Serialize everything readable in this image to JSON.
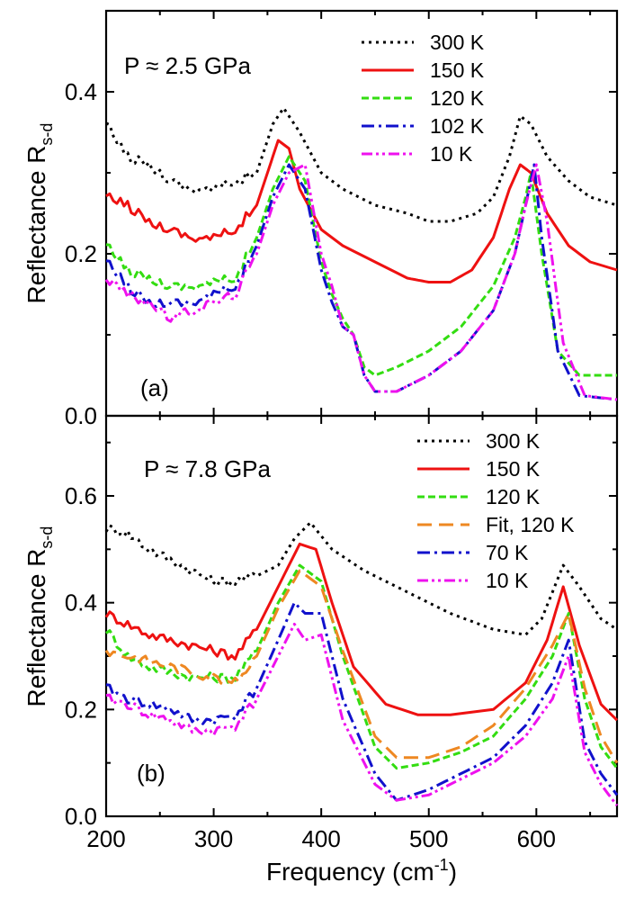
{
  "figure": {
    "x_axis_title": "Frequency (cm",
    "x_axis_unit_sup": "-1",
    "x_axis_title_end": ")"
  },
  "colors": {
    "300 K": "#000000",
    "150 K": "#ee1111",
    "120 K": "#33dd11",
    "Fit, 120 K": "#ee8822",
    "102 K": "#1111cc",
    "70 K": "#1111cc",
    "10 K": "#ee11ee"
  },
  "chart_data": [
    {
      "type": "line",
      "panel_label": "(a)",
      "annotation": "P ≈ 2.5 GPa",
      "ylabel": "Reflectance R",
      "ylabel_sub": "s-d",
      "xlabel": "Frequency (cm-1)",
      "xlim": [
        200,
        675
      ],
      "ylim": [
        0.0,
        0.5
      ],
      "xticks": [
        200,
        300,
        400,
        500,
        600
      ],
      "yticks": [
        0.0,
        0.2,
        0.4
      ],
      "ytick_labels": [
        "0.0",
        "0.2",
        "0.4"
      ],
      "legend_position": "top-right",
      "grid": false,
      "series": [
        {
          "name": "300 K",
          "style": "dotted",
          "x": [
            200,
            220,
            240,
            260,
            280,
            300,
            320,
            340,
            355,
            365,
            380,
            400,
            420,
            450,
            480,
            500,
            520,
            545,
            560,
            575,
            585,
            595,
            610,
            630,
            650,
            675
          ],
          "y": [
            0.36,
            0.32,
            0.31,
            0.29,
            0.28,
            0.28,
            0.29,
            0.3,
            0.36,
            0.38,
            0.35,
            0.3,
            0.28,
            0.26,
            0.25,
            0.24,
            0.24,
            0.25,
            0.27,
            0.32,
            0.37,
            0.36,
            0.32,
            0.29,
            0.27,
            0.26
          ]
        },
        {
          "name": "150 K",
          "style": "solid",
          "x": [
            200,
            220,
            240,
            260,
            280,
            300,
            320,
            340,
            350,
            360,
            370,
            380,
            400,
            420,
            450,
            480,
            500,
            520,
            540,
            560,
            575,
            585,
            595,
            610,
            630,
            650,
            675
          ],
          "y": [
            0.27,
            0.26,
            0.24,
            0.23,
            0.22,
            0.22,
            0.23,
            0.26,
            0.3,
            0.34,
            0.33,
            0.28,
            0.23,
            0.21,
            0.19,
            0.17,
            0.165,
            0.165,
            0.18,
            0.22,
            0.28,
            0.31,
            0.3,
            0.25,
            0.21,
            0.19,
            0.18
          ]
        },
        {
          "name": "120 K",
          "style": "dashed",
          "x": [
            200,
            220,
            240,
            260,
            280,
            300,
            320,
            340,
            355,
            370,
            385,
            400,
            410,
            420,
            430,
            440,
            450,
            470,
            500,
            530,
            560,
            580,
            590,
            595,
            605,
            620,
            640,
            675
          ],
          "y": [
            0.21,
            0.18,
            0.17,
            0.16,
            0.16,
            0.165,
            0.17,
            0.22,
            0.28,
            0.32,
            0.29,
            0.19,
            0.15,
            0.12,
            0.1,
            0.06,
            0.05,
            0.06,
            0.08,
            0.11,
            0.16,
            0.22,
            0.27,
            0.3,
            0.2,
            0.08,
            0.05,
            0.05
          ]
        },
        {
          "name": "102 K",
          "style": "dashdot",
          "x": [
            200,
            220,
            240,
            260,
            280,
            300,
            320,
            340,
            355,
            370,
            385,
            400,
            410,
            420,
            430,
            440,
            450,
            470,
            500,
            530,
            560,
            580,
            590,
            598,
            605,
            620,
            640,
            675
          ],
          "y": [
            0.19,
            0.16,
            0.14,
            0.14,
            0.14,
            0.15,
            0.16,
            0.21,
            0.27,
            0.31,
            0.28,
            0.18,
            0.14,
            0.11,
            0.1,
            0.05,
            0.03,
            0.03,
            0.05,
            0.08,
            0.13,
            0.2,
            0.26,
            0.31,
            0.22,
            0.08,
            0.025,
            0.02
          ]
        },
        {
          "name": "10 K",
          "style": "dashdotdot",
          "x": [
            200,
            220,
            240,
            260,
            280,
            300,
            320,
            340,
            355,
            370,
            385,
            400,
            410,
            420,
            430,
            440,
            450,
            470,
            500,
            530,
            560,
            580,
            590,
            600,
            610,
            625,
            645,
            675
          ],
          "y": [
            0.17,
            0.15,
            0.14,
            0.12,
            0.13,
            0.14,
            0.15,
            0.2,
            0.26,
            0.3,
            0.31,
            0.2,
            0.16,
            0.11,
            0.1,
            0.05,
            0.03,
            0.03,
            0.05,
            0.08,
            0.13,
            0.2,
            0.26,
            0.31,
            0.24,
            0.09,
            0.025,
            0.02
          ]
        }
      ]
    },
    {
      "type": "line",
      "panel_label": "(b)",
      "annotation": "P ≈ 7.8 GPa",
      "ylabel": "Reflectance R",
      "ylabel_sub": "s-d",
      "xlabel": "Frequency (cm-1)",
      "xlim": [
        200,
        675
      ],
      "ylim": [
        0.0,
        0.75
      ],
      "xticks": [
        200,
        300,
        400,
        500,
        600
      ],
      "yticks": [
        0.0,
        0.2,
        0.4,
        0.6
      ],
      "ytick_labels": [
        "0.0",
        "0.2",
        "0.4",
        "0.6"
      ],
      "legend_position": "top-right",
      "grid": false,
      "series": [
        {
          "name": "300 K",
          "style": "dotted",
          "x": [
            200,
            220,
            240,
            260,
            280,
            300,
            320,
            340,
            360,
            375,
            390,
            410,
            440,
            480,
            520,
            560,
            590,
            605,
            615,
            625,
            640,
            660,
            675
          ],
          "y": [
            0.54,
            0.53,
            0.5,
            0.48,
            0.46,
            0.44,
            0.44,
            0.45,
            0.47,
            0.52,
            0.55,
            0.5,
            0.46,
            0.42,
            0.38,
            0.35,
            0.34,
            0.37,
            0.42,
            0.47,
            0.43,
            0.37,
            0.35
          ]
        },
        {
          "name": "150 K",
          "style": "solid",
          "x": [
            200,
            220,
            240,
            260,
            280,
            300,
            320,
            340,
            360,
            380,
            395,
            410,
            430,
            460,
            490,
            520,
            560,
            590,
            610,
            625,
            640,
            660,
            675
          ],
          "y": [
            0.38,
            0.36,
            0.34,
            0.33,
            0.32,
            0.31,
            0.3,
            0.35,
            0.43,
            0.51,
            0.5,
            0.4,
            0.28,
            0.21,
            0.19,
            0.19,
            0.2,
            0.25,
            0.33,
            0.43,
            0.32,
            0.21,
            0.18
          ]
        },
        {
          "name": "120 K",
          "style": "dashed",
          "x": [
            200,
            220,
            240,
            260,
            280,
            300,
            320,
            340,
            360,
            380,
            400,
            420,
            450,
            470,
            500,
            530,
            560,
            590,
            615,
            630,
            645,
            660,
            675
          ],
          "y": [
            0.35,
            0.3,
            0.28,
            0.27,
            0.26,
            0.26,
            0.26,
            0.31,
            0.4,
            0.47,
            0.44,
            0.3,
            0.13,
            0.09,
            0.1,
            0.12,
            0.15,
            0.22,
            0.3,
            0.38,
            0.22,
            0.13,
            0.09
          ]
        },
        {
          "name": "Fit, 120 K",
          "style": "longdash",
          "x": [
            200,
            220,
            240,
            260,
            280,
            300,
            320,
            340,
            360,
            380,
            400,
            420,
            450,
            470,
            500,
            530,
            560,
            590,
            615,
            630,
            645,
            660,
            675
          ],
          "y": [
            0.31,
            0.3,
            0.29,
            0.28,
            0.27,
            0.26,
            0.25,
            0.3,
            0.39,
            0.46,
            0.43,
            0.31,
            0.15,
            0.11,
            0.11,
            0.13,
            0.17,
            0.24,
            0.32,
            0.38,
            0.24,
            0.15,
            0.1
          ]
        },
        {
          "name": "70 K",
          "style": "dashdot",
          "x": [
            200,
            220,
            240,
            260,
            280,
            300,
            320,
            340,
            360,
            375,
            385,
            400,
            420,
            450,
            470,
            500,
            530,
            560,
            590,
            615,
            630,
            645,
            660,
            675
          ],
          "y": [
            0.24,
            0.22,
            0.21,
            0.2,
            0.18,
            0.18,
            0.19,
            0.24,
            0.33,
            0.4,
            0.38,
            0.38,
            0.22,
            0.08,
            0.03,
            0.05,
            0.08,
            0.11,
            0.17,
            0.25,
            0.33,
            0.14,
            0.08,
            0.04
          ]
        },
        {
          "name": "10 K",
          "style": "dashdotdot",
          "x": [
            200,
            220,
            240,
            260,
            280,
            300,
            320,
            340,
            360,
            375,
            385,
            400,
            420,
            450,
            470,
            500,
            530,
            560,
            590,
            615,
            630,
            645,
            660,
            675
          ],
          "y": [
            0.22,
            0.21,
            0.19,
            0.18,
            0.16,
            0.16,
            0.17,
            0.22,
            0.3,
            0.36,
            0.33,
            0.34,
            0.18,
            0.06,
            0.03,
            0.04,
            0.07,
            0.1,
            0.15,
            0.22,
            0.3,
            0.12,
            0.06,
            0.02
          ]
        }
      ]
    }
  ]
}
